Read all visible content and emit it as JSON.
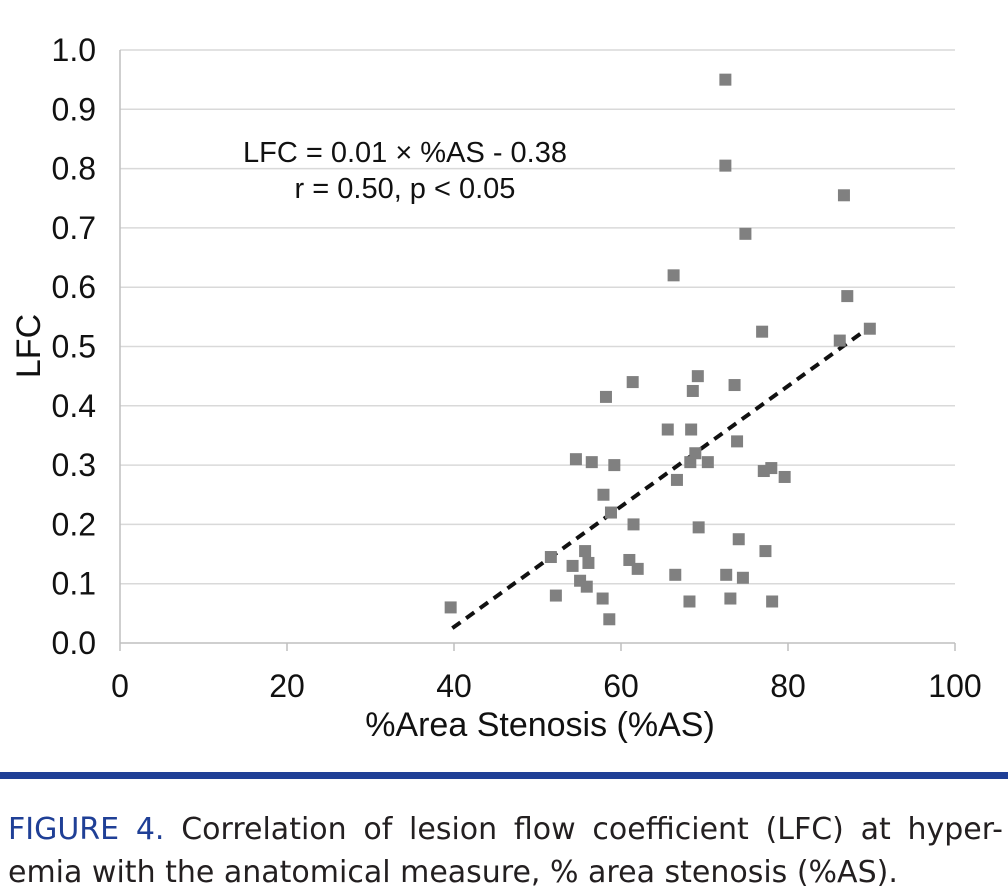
{
  "colors": {
    "marker": "#808080",
    "trendline": "#111111",
    "gridline": "#d9d9d9",
    "axis": "#bfbfbf",
    "caption_accent": "#1f3f96",
    "caption_text": "#231f20"
  },
  "chart_data": {
    "type": "scatter",
    "title": "",
    "xlabel": "%Area Stenosis (%AS)",
    "ylabel": "LFC",
    "xlim": [
      0,
      100
    ],
    "ylim": [
      0.0,
      1.0
    ],
    "x_ticks": [
      "0",
      "20",
      "40",
      "60",
      "80",
      "100"
    ],
    "y_ticks": [
      "0.0",
      "0.1",
      "0.2",
      "0.3",
      "0.4",
      "0.5",
      "0.6",
      "0.7",
      "0.8",
      "0.9",
      "1.0"
    ],
    "grid": "horizontal",
    "marker": "square",
    "annotation_lines": [
      "LFC = 0.01 × %AS - 0.38",
      "r = 0.50, p < 0.05"
    ],
    "trendline": {
      "style": "dashed",
      "x": [
        39.8,
        90.0
      ],
      "y": [
        0.025,
        0.535
      ]
    },
    "points": [
      [
        39.6,
        0.06
      ],
      [
        51.6,
        0.145
      ],
      [
        52.2,
        0.08
      ],
      [
        54.2,
        0.13
      ],
      [
        54.6,
        0.31
      ],
      [
        55.1,
        0.105
      ],
      [
        55.7,
        0.155
      ],
      [
        55.9,
        0.095
      ],
      [
        56.1,
        0.135
      ],
      [
        56.5,
        0.305
      ],
      [
        57.8,
        0.075
      ],
      [
        57.9,
        0.25
      ],
      [
        58.2,
        0.415
      ],
      [
        58.6,
        0.04
      ],
      [
        58.8,
        0.22
      ],
      [
        59.2,
        0.3
      ],
      [
        61.0,
        0.14
      ],
      [
        61.4,
        0.44
      ],
      [
        61.5,
        0.2
      ],
      [
        62.0,
        0.125
      ],
      [
        65.6,
        0.36
      ],
      [
        66.3,
        0.62
      ],
      [
        66.5,
        0.115
      ],
      [
        66.7,
        0.275
      ],
      [
        68.2,
        0.07
      ],
      [
        68.3,
        0.305
      ],
      [
        68.4,
        0.36
      ],
      [
        68.6,
        0.425
      ],
      [
        68.9,
        0.32
      ],
      [
        69.2,
        0.45
      ],
      [
        69.3,
        0.195
      ],
      [
        70.4,
        0.305
      ],
      [
        72.5,
        0.95
      ],
      [
        72.5,
        0.805
      ],
      [
        72.6,
        0.115
      ],
      [
        73.1,
        0.075
      ],
      [
        73.6,
        0.435
      ],
      [
        73.9,
        0.34
      ],
      [
        74.1,
        0.175
      ],
      [
        74.6,
        0.11
      ],
      [
        74.9,
        0.69
      ],
      [
        76.9,
        0.525
      ],
      [
        77.1,
        0.29
      ],
      [
        77.3,
        0.155
      ],
      [
        78.0,
        0.295
      ],
      [
        78.1,
        0.07
      ],
      [
        79.6,
        0.28
      ],
      [
        86.2,
        0.51
      ],
      [
        86.7,
        0.755
      ],
      [
        87.1,
        0.585
      ],
      [
        89.8,
        0.53
      ]
    ]
  },
  "caption": {
    "label": "FIGURE 4.",
    "text": "Correlation of lesion flow coefficient (LFC) at hyper-emia with the anatomical measure, % area stenosis (%AS)."
  }
}
